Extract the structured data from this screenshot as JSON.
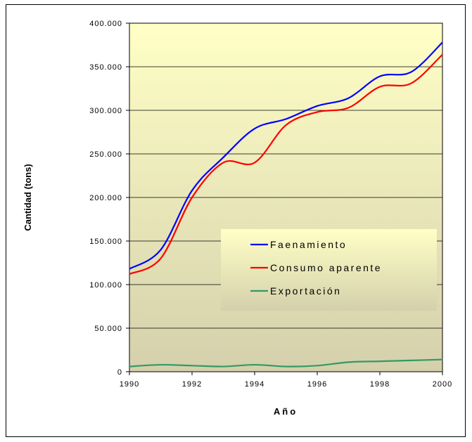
{
  "chart_data": {
    "type": "line",
    "title": "",
    "xlabel": "Año",
    "ylabel": "Cantidad (tons)",
    "xlim": [
      1990,
      2000
    ],
    "ylim": [
      0,
      400000
    ],
    "x_ticks": [
      "1990",
      "1992",
      "1994",
      "1996",
      "1998",
      "2000"
    ],
    "y_ticks": [
      "0",
      "50.000",
      "100.000",
      "150.000",
      "200.000",
      "250.000",
      "300.000",
      "350.000",
      "400.000"
    ],
    "grid": true,
    "legend_position": "center-right",
    "x": [
      1990,
      1991,
      1992,
      1993,
      1994,
      1995,
      1996,
      1997,
      1998,
      1999,
      2000
    ],
    "series": [
      {
        "name": "Faenamiento",
        "color": "#0000ff",
        "values": [
          118000,
          140000,
          208000,
          246000,
          279000,
          290000,
          305000,
          314000,
          339000,
          344000,
          378000
        ]
      },
      {
        "name": "Consumo aparente",
        "color": "#ff0000",
        "values": [
          112000,
          130000,
          200000,
          240000,
          240000,
          283000,
          298000,
          303000,
          327000,
          331000,
          364000
        ]
      },
      {
        "name": "Exportación",
        "color": "#339966",
        "values": [
          6000,
          8000,
          7000,
          6000,
          8000,
          6000,
          7000,
          11000,
          12000,
          13000,
          14000
        ]
      }
    ]
  }
}
